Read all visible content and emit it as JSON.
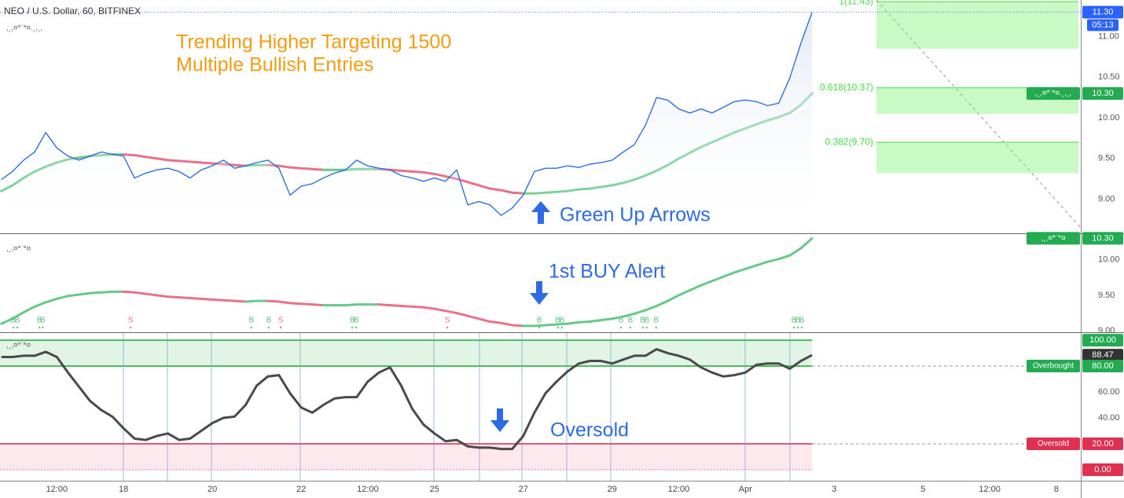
{
  "chart_data": [
    {
      "type": "line",
      "title": "NEO / U.S. Dollar, 60, BITFINEX",
      "indicator": ",¸,¤*¨*¤.¸,¸,",
      "annotations": [
        "Trending Higher Targeting 1500",
        "Multiple Bullish Entries",
        "Green Up Arrows"
      ],
      "x": [
        -0.75,
        -0.5,
        -0.25,
        0,
        0.25,
        0.5,
        0.75,
        1,
        1.25,
        1.5,
        1.75,
        2,
        2.25,
        2.5,
        2.75,
        3,
        3.25,
        3.5,
        3.75,
        4,
        4.25,
        4.5,
        4.75,
        5,
        5.25,
        5.5,
        5.75,
        6,
        6.25,
        6.5,
        6.75,
        7,
        7.25,
        7.5,
        7.75,
        8,
        8.25,
        8.5,
        8.75,
        9,
        9.25,
        9.5,
        9.75,
        10,
        10.25,
        10.5,
        10.75,
        11,
        11.25,
        11.5,
        11.75,
        12,
        12.25,
        12.5,
        12.75,
        13,
        13.25,
        13.5,
        13.75,
        14,
        14.25,
        14.5,
        14.75,
        15,
        15.25,
        15.5,
        15.75,
        16,
        16.25,
        16.5,
        16.75,
        17,
        17.25,
        17.5
      ],
      "xlim": [
        -0.78,
        23.55
      ],
      "xticks": [
        {
          "value": 0.5,
          "label": "12:00"
        },
        {
          "value": 2,
          "label": "18"
        },
        {
          "value": 4,
          "label": "20"
        },
        {
          "value": 6,
          "label": "22"
        },
        {
          "value": 7.5,
          "label": "12:00"
        },
        {
          "value": 9,
          "label": "25"
        },
        {
          "value": 11,
          "label": "27"
        },
        {
          "value": 13,
          "label": "29"
        },
        {
          "value": 14.5,
          "label": "12:00"
        },
        {
          "value": 16,
          "label": "Apr"
        },
        {
          "value": 18,
          "label": "3"
        },
        {
          "value": 20,
          "label": "5"
        },
        {
          "value": 21.5,
          "label": "12:00"
        },
        {
          "value": 23,
          "label": "8"
        }
      ],
      "series": [
        {
          "color": "#2f6fde",
          "values": [
            9.24,
            9.34,
            9.48,
            9.58,
            9.82,
            9.63,
            9.53,
            9.48,
            9.53,
            9.58,
            9.55,
            9.53,
            9.26,
            9.32,
            9.36,
            9.38,
            9.34,
            9.26,
            9.36,
            9.41,
            9.48,
            9.38,
            9.41,
            9.45,
            9.48,
            9.38,
            9.05,
            9.16,
            9.19,
            9.26,
            9.32,
            9.36,
            9.48,
            9.41,
            9.38,
            9.36,
            9.29,
            9.26,
            9.22,
            9.26,
            9.22,
            9.36,
            8.93,
            8.97,
            8.93,
            8.8,
            8.89,
            9.05,
            9.34,
            9.38,
            9.38,
            9.41,
            9.39,
            9.43,
            9.45,
            9.48,
            9.58,
            9.67,
            9.91,
            10.25,
            10.22,
            10.11,
            10.06,
            10.11,
            10.06,
            10.13,
            10.2,
            10.22,
            10.2,
            10.15,
            10.18,
            10.49,
            10.92,
            11.3
          ]
        },
        {
          "color": "#66c98a",
          "down_color": "#e8728b",
          "values": [
            9.1,
            9.17,
            9.26,
            9.34,
            9.4,
            9.45,
            9.49,
            9.51,
            9.53,
            9.54,
            9.55,
            9.55,
            9.54,
            9.52,
            9.5,
            9.48,
            9.47,
            9.46,
            9.45,
            9.44,
            9.43,
            9.42,
            9.41,
            9.42,
            9.42,
            9.41,
            9.39,
            9.38,
            9.37,
            9.36,
            9.36,
            9.36,
            9.37,
            9.37,
            9.37,
            9.36,
            9.35,
            9.34,
            9.33,
            9.31,
            9.28,
            9.25,
            9.21,
            9.17,
            9.13,
            9.11,
            9.08,
            9.07,
            9.07,
            9.08,
            9.09,
            9.1,
            9.12,
            9.13,
            9.15,
            9.17,
            9.2,
            9.24,
            9.29,
            9.35,
            9.42,
            9.5,
            9.57,
            9.64,
            9.7,
            9.76,
            9.82,
            9.87,
            9.92,
            9.97,
            10.01,
            10.06,
            10.16,
            10.3
          ]
        }
      ],
      "ylim": [
        8.58,
        11.45
      ],
      "yticks": [
        {
          "value": 11,
          "label": "11.00"
        },
        {
          "value": 10.5,
          "label": "10.50"
        },
        {
          "value": 10,
          "label": "10.00"
        },
        {
          "value": 9.5,
          "label": "9.50"
        },
        {
          "value": 9,
          "label": "9.00"
        }
      ],
      "tags": [
        {
          "value": 11.3,
          "label": "11.30",
          "color": "#2962ff",
          "countdown": "05:13"
        },
        {
          "value": 10.3,
          "label": "10.30",
          "color": "#22ab50",
          "name": ",¸,¤*¨*¤.¸,¸,"
        }
      ],
      "fib": {
        "color": "#44dd44",
        "fill": "rgba(120,240,110,0.4)",
        "x": [
          18.95,
          23.5
        ],
        "levels": [
          {
            "value": 11.43,
            "to": 10.85,
            "label": "1(11.43)"
          },
          {
            "value": 10.37,
            "to": 10.05,
            "label": "0.618(10.37)"
          },
          {
            "value": 9.7,
            "to": 9.32,
            "label": "0.382(9.70)"
          }
        ]
      },
      "grid": false
    },
    {
      "type": "line",
      "indicator": ",¸,¤*¨*¤",
      "annotations": [
        "1st BUY Alert"
      ],
      "series": [
        {
          "color": "#66c98a",
          "down_color": "#e8728b",
          "values": [
            9.1,
            9.17,
            9.26,
            9.34,
            9.4,
            9.45,
            9.49,
            9.51,
            9.53,
            9.54,
            9.55,
            9.55,
            9.54,
            9.52,
            9.5,
            9.48,
            9.47,
            9.46,
            9.45,
            9.44,
            9.43,
            9.42,
            9.41,
            9.42,
            9.42,
            9.41,
            9.39,
            9.38,
            9.37,
            9.36,
            9.36,
            9.36,
            9.37,
            9.37,
            9.37,
            9.36,
            9.35,
            9.34,
            9.33,
            9.31,
            9.28,
            9.25,
            9.21,
            9.17,
            9.13,
            9.11,
            9.08,
            9.07,
            9.07,
            9.08,
            9.09,
            9.1,
            9.12,
            9.13,
            9.15,
            9.17,
            9.2,
            9.24,
            9.29,
            9.35,
            9.42,
            9.5,
            9.57,
            9.64,
            9.7,
            9.76,
            9.82,
            9.87,
            9.92,
            9.97,
            10.01,
            10.06,
            10.16,
            10.3
          ]
        }
      ],
      "ylim": [
        8.98,
        10.36
      ],
      "yticks": [
        {
          "value": 10,
          "label": "10.00"
        },
        {
          "value": 9.5,
          "label": "9.50"
        },
        {
          "value": 9,
          "label": "9.00"
        }
      ],
      "tags": [
        {
          "value": 10.3,
          "label": "10.30",
          "color": "#22ab50",
          "name": ",¸,¤*¨*¤"
        }
      ],
      "signals": [
        {
          "label": "B",
          "color": "#5cc47e",
          "x": [
            -0.48,
            -0.39,
            0.11,
            0.18,
            4.88,
            5.27,
            7.15,
            7.24,
            11.36,
            11.78,
            11.87,
            13.2,
            13.41,
            13.69,
            13.78,
            13.99,
            17.09,
            17.18,
            17.27
          ]
        },
        {
          "label": "S",
          "color": "#e8728b",
          "x": [
            2.16,
            5.54,
            9.29
          ]
        }
      ],
      "grid": false
    },
    {
      "type": "line",
      "indicator": ",¸,¤*¨*¤",
      "annotations": [
        "Oversold"
      ],
      "series": [
        {
          "color": "#4a4a4a",
          "values": [
            87,
            87,
            88,
            88,
            91,
            87,
            75,
            64,
            53,
            46,
            41,
            32,
            24,
            23,
            26,
            28,
            23,
            24,
            30,
            36,
            40,
            41,
            50,
            65,
            72,
            73,
            59,
            48,
            44,
            50,
            55,
            56,
            56,
            68,
            75,
            79,
            65,
            47,
            35,
            28,
            22,
            23,
            18,
            17,
            17,
            16,
            16,
            26,
            44,
            59,
            68,
            76,
            82,
            84,
            84,
            82,
            85,
            88,
            88,
            93,
            90,
            88,
            85,
            79,
            75,
            72,
            73,
            75,
            81,
            82,
            82,
            78,
            84,
            88.47
          ]
        }
      ],
      "ylim": [
        -8.5,
        105.5
      ],
      "yticks": [
        {
          "value": 60,
          "label": "60.00"
        },
        {
          "value": 40,
          "label": "40.00"
        }
      ],
      "bands": [
        {
          "from": 80,
          "to": 100,
          "color": "#4cbb5e",
          "fill": "rgba(76,187,94,0.16)"
        },
        {
          "from": 0,
          "to": 20,
          "color": "#e05a78",
          "fill": "rgba(240,110,140,0.16)"
        }
      ],
      "tags": [
        {
          "value": 100,
          "label": "100.00",
          "color": "#22ab50"
        },
        {
          "value": 88.47,
          "label": "88.47",
          "color": "#333333"
        },
        {
          "value": 80,
          "label": "80.00",
          "color": "#22ab50",
          "name": "Overbought"
        },
        {
          "value": 20,
          "label": "20.00",
          "color": "#e0304f",
          "name": "Oversold"
        },
        {
          "value": 0,
          "label": "0.00",
          "color": "#e0304f"
        }
      ],
      "grid": false
    }
  ]
}
